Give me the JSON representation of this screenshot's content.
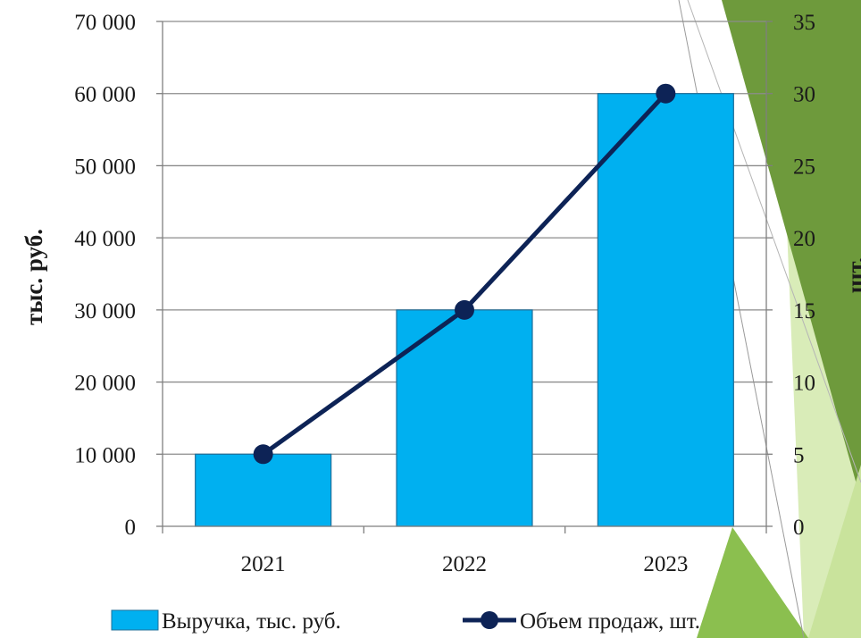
{
  "chart_data": {
    "type": "bar+line",
    "categories": [
      "2021",
      "2022",
      "2023"
    ],
    "series": [
      {
        "name": "Выручка, тыс. руб.",
        "type": "bar",
        "axis": "left",
        "values": [
          10000,
          30000,
          60000
        ],
        "color": "#00b0f0"
      },
      {
        "name": "Объем продаж, шт.",
        "type": "line",
        "axis": "right",
        "values": [
          5,
          15,
          30
        ],
        "color": "#0d2356"
      }
    ],
    "ylabel_left": "тыс. руб.",
    "ylabel_right": "шт.",
    "ylim_left": [
      0,
      70000
    ],
    "ylim_right": [
      0,
      35
    ],
    "yticks_left": [
      "0",
      "10 000",
      "20 000",
      "30 000",
      "40 000",
      "50 000",
      "60 000",
      "70 000"
    ],
    "yticks_right": [
      "0",
      "5",
      "10",
      "15",
      "20",
      "25",
      "30",
      "35"
    ],
    "grid": true,
    "legend_position": "bottom"
  },
  "colors": {
    "bar_fill": "#00b0f0",
    "bar_stroke": "#1f6f9a",
    "line": "#0d2356",
    "grid": "#8c8c8c",
    "decor_dark_green": "#6e9a3c",
    "decor_mid_green": "#8bbf4f",
    "decor_light_green": "#d9ecb8"
  }
}
